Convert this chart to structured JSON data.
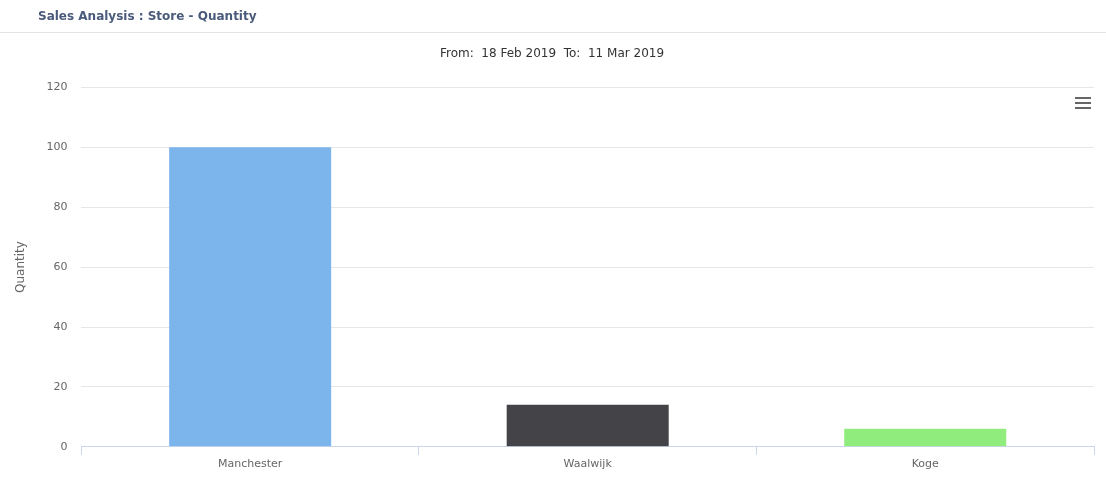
{
  "chart_data": {
    "type": "bar",
    "title": "Sales Analysis : Store - Quantity",
    "subtitle": "From:  18 Feb 2019  To:  11 Mar 2019",
    "ylabel": "Quantity",
    "categories": [
      "Manchester",
      "Waalwijk",
      "Koge"
    ],
    "values": [
      100,
      14,
      6
    ],
    "colors": [
      "#7cb5ec",
      "#434348",
      "#90ed7d"
    ],
    "ylim": [
      0,
      120
    ],
    "yticks": [
      0,
      20,
      40,
      60,
      80,
      100,
      120
    ],
    "grid": "y",
    "legend": false
  }
}
